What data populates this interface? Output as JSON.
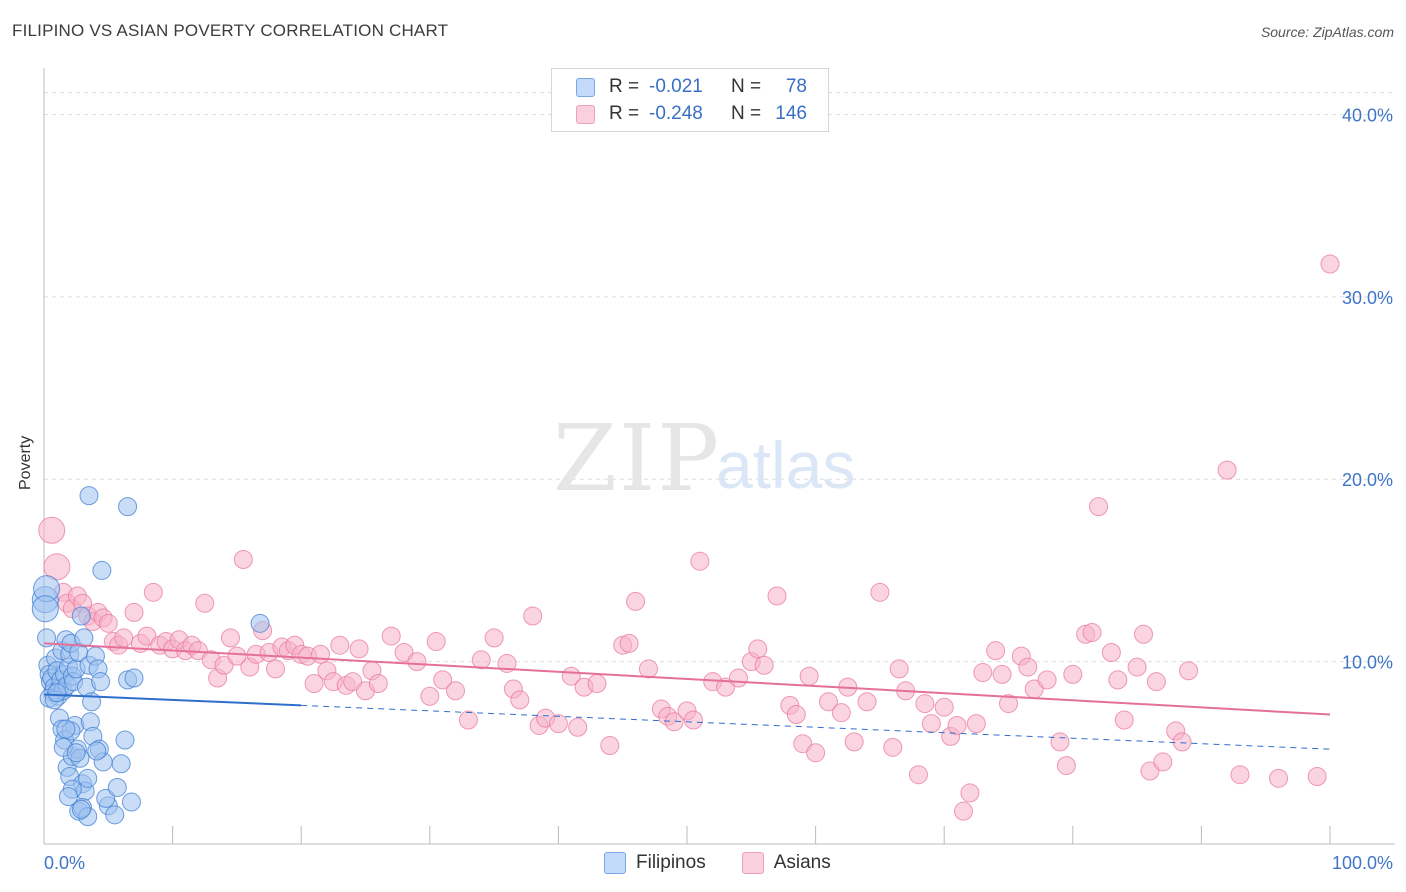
{
  "header": {
    "title": "FILIPINO VS ASIAN POVERTY CORRELATION CHART",
    "source": "Source: ZipAtlas.com"
  },
  "watermark": {
    "zip": "ZIP",
    "atlas": "atlas"
  },
  "legend": {
    "rows": [
      {
        "r_label": "R =",
        "r_value": "-0.021",
        "n_label": "N =",
        "n_value": "78",
        "color": "#9ec1ee"
      },
      {
        "r_label": "R =",
        "r_value": "-0.248",
        "n_label": "N =",
        "n_value": "146",
        "color": "#f5b3c8"
      }
    ]
  },
  "bottom_legend": [
    {
      "label": "Filipinos",
      "color": "#9ec1ee"
    },
    {
      "label": "Asians",
      "color": "#f5b3c8"
    }
  ],
  "colors": {
    "filipino_fill": "#9ec1ee",
    "filipino_stroke": "#3f7fd4",
    "filipino_line": "#2f6fcc",
    "asian_fill": "#f5b3c8",
    "asian_stroke": "#e9799f",
    "asian_line": "#e5709a",
    "axis_text": "#3f74c9",
    "grid": "#dedede"
  },
  "chart_data": {
    "type": "scatter",
    "title": "FILIPINO VS ASIAN POVERTY CORRELATION CHART",
    "xlabel": "",
    "ylabel": "Poverty",
    "xlim": [
      0,
      100
    ],
    "ylim": [
      0,
      42
    ],
    "x_tick_labels": [
      "0.0%",
      "100.0%"
    ],
    "y_ticks": [
      10,
      20,
      30,
      40
    ],
    "y_tick_labels": [
      "10.0%",
      "20.0%",
      "30.0%",
      "40.0%"
    ],
    "grid": true,
    "series": [
      {
        "name": "Filipinos",
        "R": -0.021,
        "N": 78,
        "trend": {
          "x0": 0,
          "y0": 8.2,
          "x_solid_end": 20,
          "y_solid_end": 7.6,
          "x1": 100,
          "y1": 5.2
        },
        "points": [
          [
            0.1,
            13.4
          ],
          [
            0.2,
            14.0
          ],
          [
            0.1,
            12.9
          ],
          [
            0.2,
            11.3
          ],
          [
            0.3,
            9.8
          ],
          [
            0.4,
            9.3
          ],
          [
            0.5,
            8.9
          ],
          [
            0.6,
            9.1
          ],
          [
            0.7,
            8.3
          ],
          [
            0.8,
            8.6
          ],
          [
            0.9,
            10.2
          ],
          [
            1.0,
            9.5
          ],
          [
            1.1,
            8.1
          ],
          [
            1.2,
            8.5
          ],
          [
            1.3,
            9.0
          ],
          [
            1.4,
            10.6
          ],
          [
            1.5,
            8.4
          ],
          [
            1.6,
            9.3
          ],
          [
            1.7,
            11.2
          ],
          [
            1.8,
            8.7
          ],
          [
            1.9,
            9.7
          ],
          [
            2.0,
            10.4
          ],
          [
            2.1,
            11.0
          ],
          [
            2.2,
            9.2
          ],
          [
            2.3,
            8.9
          ],
          [
            2.5,
            9.6
          ],
          [
            2.7,
            10.5
          ],
          [
            2.9,
            12.5
          ],
          [
            3.1,
            11.3
          ],
          [
            3.3,
            8.6
          ],
          [
            3.5,
            9.8
          ],
          [
            3.7,
            7.8
          ],
          [
            4.0,
            10.3
          ],
          [
            4.2,
            9.6
          ],
          [
            4.4,
            8.9
          ],
          [
            6.5,
            9.0
          ],
          [
            7.0,
            9.1
          ],
          [
            0.4,
            8.0
          ],
          [
            0.8,
            7.9
          ],
          [
            1.0,
            8.3
          ],
          [
            1.2,
            6.9
          ],
          [
            1.4,
            6.3
          ],
          [
            1.6,
            5.7
          ],
          [
            1.8,
            4.2
          ],
          [
            2.0,
            3.7
          ],
          [
            2.2,
            4.8
          ],
          [
            2.4,
            6.5
          ],
          [
            2.6,
            5.2
          ],
          [
            2.8,
            4.7
          ],
          [
            3.0,
            3.3
          ],
          [
            3.2,
            2.9
          ],
          [
            3.4,
            3.6
          ],
          [
            3.6,
            6.7
          ],
          [
            3.8,
            5.9
          ],
          [
            4.3,
            5.2
          ],
          [
            4.6,
            4.5
          ],
          [
            5.0,
            2.1
          ],
          [
            5.5,
            1.6
          ],
          [
            6.0,
            4.4
          ],
          [
            6.3,
            5.7
          ],
          [
            3.5,
            19.1
          ],
          [
            6.5,
            18.5
          ],
          [
            4.5,
            15.0
          ],
          [
            16.8,
            12.1
          ],
          [
            1.5,
            5.3
          ],
          [
            2.5,
            5.0
          ],
          [
            2.1,
            6.2
          ],
          [
            1.7,
            6.3
          ],
          [
            2.2,
            3.0
          ],
          [
            2.7,
            1.8
          ],
          [
            3.0,
            2.0
          ],
          [
            3.4,
            1.5
          ],
          [
            4.8,
            2.5
          ],
          [
            5.7,
            3.1
          ],
          [
            6.8,
            2.3
          ],
          [
            4.1,
            5.1
          ],
          [
            1.9,
            2.6
          ],
          [
            2.9,
            1.9
          ]
        ]
      },
      {
        "name": "Asians",
        "R": -0.248,
        "N": 146,
        "trend": {
          "x0": 0,
          "y0": 11.0,
          "x1": 100,
          "y1": 7.1
        },
        "points": [
          [
            0.6,
            17.2
          ],
          [
            1.0,
            15.2
          ],
          [
            1.5,
            13.8
          ],
          [
            1.8,
            13.2
          ],
          [
            2.2,
            12.9
          ],
          [
            2.6,
            13.6
          ],
          [
            3.0,
            13.2
          ],
          [
            3.4,
            12.5
          ],
          [
            3.8,
            12.2
          ],
          [
            4.2,
            12.7
          ],
          [
            4.6,
            12.4
          ],
          [
            5.0,
            12.1
          ],
          [
            5.4,
            11.1
          ],
          [
            5.8,
            10.9
          ],
          [
            6.2,
            11.3
          ],
          [
            7.0,
            12.7
          ],
          [
            7.5,
            11.0
          ],
          [
            8.0,
            11.4
          ],
          [
            8.5,
            13.8
          ],
          [
            9.0,
            10.9
          ],
          [
            9.5,
            11.1
          ],
          [
            10.0,
            10.7
          ],
          [
            10.5,
            11.2
          ],
          [
            11.0,
            10.6
          ],
          [
            11.5,
            10.9
          ],
          [
            12.0,
            10.6
          ],
          [
            12.5,
            13.2
          ],
          [
            13.0,
            10.1
          ],
          [
            13.5,
            9.1
          ],
          [
            14.0,
            9.8
          ],
          [
            14.5,
            11.3
          ],
          [
            15.0,
            10.3
          ],
          [
            15.5,
            15.6
          ],
          [
            16.0,
            9.7
          ],
          [
            16.5,
            10.4
          ],
          [
            17.0,
            11.7
          ],
          [
            17.5,
            10.5
          ],
          [
            18.0,
            9.6
          ],
          [
            18.5,
            10.8
          ],
          [
            19.0,
            10.6
          ],
          [
            19.5,
            10.9
          ],
          [
            20.0,
            10.4
          ],
          [
            20.5,
            10.3
          ],
          [
            21.0,
            8.8
          ],
          [
            21.5,
            10.4
          ],
          [
            22.0,
            9.5
          ],
          [
            22.5,
            8.9
          ],
          [
            23.0,
            10.9
          ],
          [
            23.5,
            8.7
          ],
          [
            24.0,
            8.9
          ],
          [
            24.5,
            10.7
          ],
          [
            25.0,
            8.4
          ],
          [
            25.5,
            9.5
          ],
          [
            26.0,
            8.8
          ],
          [
            27.0,
            11.4
          ],
          [
            28.0,
            10.5
          ],
          [
            29.0,
            10.0
          ],
          [
            30.0,
            8.1
          ],
          [
            30.5,
            11.1
          ],
          [
            31.0,
            9.0
          ],
          [
            32.0,
            8.4
          ],
          [
            33.0,
            6.8
          ],
          [
            34.0,
            10.1
          ],
          [
            35.0,
            11.3
          ],
          [
            36.0,
            9.9
          ],
          [
            36.5,
            8.5
          ],
          [
            37.0,
            7.9
          ],
          [
            38.0,
            12.5
          ],
          [
            38.5,
            6.5
          ],
          [
            39.0,
            6.9
          ],
          [
            40.0,
            6.6
          ],
          [
            41.0,
            9.2
          ],
          [
            41.5,
            6.4
          ],
          [
            42.0,
            8.6
          ],
          [
            43.0,
            8.8
          ],
          [
            44.0,
            5.4
          ],
          [
            45.0,
            10.9
          ],
          [
            45.5,
            11.0
          ],
          [
            46.0,
            13.3
          ],
          [
            47.0,
            9.6
          ],
          [
            48.0,
            7.4
          ],
          [
            48.5,
            7.0
          ],
          [
            49.0,
            6.7
          ],
          [
            50.0,
            7.3
          ],
          [
            50.5,
            6.8
          ],
          [
            51.0,
            15.5
          ],
          [
            52.0,
            8.9
          ],
          [
            53.0,
            8.6
          ],
          [
            54.0,
            9.1
          ],
          [
            55.0,
            10.0
          ],
          [
            55.5,
            10.7
          ],
          [
            56.0,
            9.8
          ],
          [
            57.0,
            13.6
          ],
          [
            58.0,
            7.6
          ],
          [
            58.5,
            7.1
          ],
          [
            59.0,
            5.5
          ],
          [
            59.5,
            9.2
          ],
          [
            60.0,
            5.0
          ],
          [
            61.0,
            7.8
          ],
          [
            62.0,
            7.2
          ],
          [
            62.5,
            8.6
          ],
          [
            63.0,
            5.6
          ],
          [
            64.0,
            7.8
          ],
          [
            65.0,
            13.8
          ],
          [
            66.0,
            5.3
          ],
          [
            66.5,
            9.6
          ],
          [
            67.0,
            8.4
          ],
          [
            68.0,
            3.8
          ],
          [
            68.5,
            7.7
          ],
          [
            69.0,
            6.6
          ],
          [
            70.0,
            7.5
          ],
          [
            70.5,
            5.9
          ],
          [
            71.0,
            6.5
          ],
          [
            72.0,
            2.8
          ],
          [
            72.5,
            6.6
          ],
          [
            73.0,
            9.4
          ],
          [
            74.0,
            10.6
          ],
          [
            74.5,
            9.3
          ],
          [
            75.0,
            7.7
          ],
          [
            76.0,
            10.3
          ],
          [
            76.5,
            9.7
          ],
          [
            77.0,
            8.5
          ],
          [
            78.0,
            9.0
          ],
          [
            79.0,
            5.6
          ],
          [
            79.5,
            4.3
          ],
          [
            80.0,
            9.3
          ],
          [
            81.0,
            11.5
          ],
          [
            81.5,
            11.6
          ],
          [
            82.0,
            18.5
          ],
          [
            83.0,
            10.5
          ],
          [
            83.5,
            9.0
          ],
          [
            84.0,
            6.8
          ],
          [
            85.0,
            9.7
          ],
          [
            85.5,
            11.5
          ],
          [
            86.0,
            4.0
          ],
          [
            86.5,
            8.9
          ],
          [
            87.0,
            4.5
          ],
          [
            88.0,
            6.2
          ],
          [
            88.5,
            5.6
          ],
          [
            89.0,
            9.5
          ],
          [
            92.0,
            20.5
          ],
          [
            93.0,
            3.8
          ],
          [
            96.0,
            3.6
          ],
          [
            99.0,
            3.7
          ],
          [
            100.0,
            31.8
          ],
          [
            71.5,
            1.8
          ]
        ]
      }
    ]
  }
}
